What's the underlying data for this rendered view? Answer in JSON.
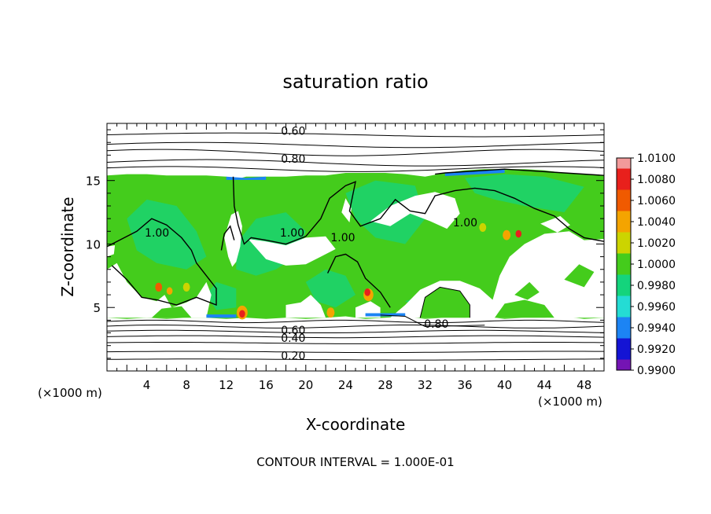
{
  "chart_data": {
    "type": "heatmap",
    "title": "saturation ratio",
    "xlabel": "X-coordinate",
    "ylabel": "Z-coordinate",
    "x_unit_left": "(×1000 m)",
    "x_unit_right": "(×1000 m)",
    "footer": "CONTOUR INTERVAL = 1.000E-01",
    "xlim": [
      0,
      50
    ],
    "ylim": [
      0,
      19.5
    ],
    "x_ticks": [
      4,
      8,
      12,
      16,
      20,
      24,
      28,
      32,
      36,
      40,
      44,
      48
    ],
    "y_ticks": [
      5,
      10,
      15
    ],
    "contour_labels": [
      {
        "text": "0.60",
        "x": 17.5,
        "y": 18.6
      },
      {
        "text": "0.80",
        "x": 17.5,
        "y": 16.4
      },
      {
        "text": "1.00",
        "x": 3.8,
        "y": 10.6
      },
      {
        "text": "1.00",
        "x": 17.4,
        "y": 10.6
      },
      {
        "text": "1.00",
        "x": 22.5,
        "y": 10.2
      },
      {
        "text": "1.00",
        "x": 34.8,
        "y": 11.4
      },
      {
        "text": "0.60",
        "x": 17.5,
        "y": 2.9
      },
      {
        "text": "0.40",
        "x": 17.5,
        "y": 2.3
      },
      {
        "text": "0.20",
        "x": 17.5,
        "y": 0.9
      },
      {
        "text": "0.80",
        "x": 31.9,
        "y": 3.4
      }
    ],
    "colorbar": {
      "labels": [
        "1.0100",
        "1.0080",
        "1.0060",
        "1.0040",
        "1.0020",
        "1.0000",
        "0.9980",
        "0.9960",
        "0.9940",
        "0.9920",
        "0.9900"
      ],
      "colors": [
        "#f29a9a",
        "#e8201c",
        "#f05a00",
        "#f4a400",
        "#ccd400",
        "#44cc1c",
        "#14d47c",
        "#24dcd4",
        "#1c84f4",
        "#1414d4",
        "#7414b4"
      ]
    }
  }
}
